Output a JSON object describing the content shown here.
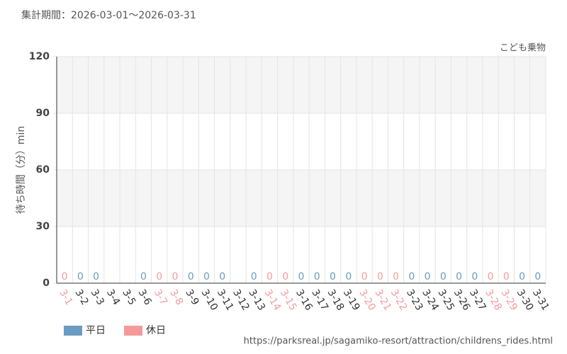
{
  "chart_data": {
    "type": "bar",
    "title": "集計期間：2026-03-01〜2026-03-31",
    "subtitle": "こども乗物",
    "y_label": "待ち時間（分）min",
    "source": "https://parksreal.jp/sagamiko-resort/attraction/childrens_rides.html",
    "categories": [
      "3-1",
      "3-2",
      "3-3",
      "3-4",
      "3-5",
      "3-6",
      "3-7",
      "3-8",
      "3-9",
      "3-10",
      "3-11",
      "3-12",
      "3-13",
      "3-14",
      "3-15",
      "3-16",
      "3-17",
      "3-18",
      "3-19",
      "3-20",
      "3-21",
      "3-22",
      "3-23",
      "3-24",
      "3-25",
      "3-26",
      "3-27",
      "3-28",
      "3-29",
      "3-30",
      "3-31"
    ],
    "series": [
      {
        "name": "平日",
        "color": "#6a9bc3",
        "values": [
          null,
          0,
          0,
          null,
          null,
          0,
          null,
          null,
          0,
          0,
          0,
          null,
          0,
          null,
          null,
          0,
          0,
          0,
          0,
          null,
          null,
          null,
          0,
          0,
          0,
          0,
          0,
          null,
          null,
          0,
          0
        ]
      },
      {
        "name": "休日",
        "color": "#f59a9a",
        "values": [
          0,
          null,
          null,
          null,
          null,
          null,
          0,
          0,
          null,
          null,
          null,
          null,
          null,
          0,
          0,
          null,
          null,
          null,
          null,
          0,
          0,
          0,
          null,
          null,
          null,
          null,
          null,
          0,
          0,
          null,
          null
        ]
      }
    ],
    "ylim": [
      0,
      120
    ],
    "yticks": [
      0,
      30,
      60,
      90,
      120
    ],
    "grid": true,
    "legend": "bottom-left"
  }
}
